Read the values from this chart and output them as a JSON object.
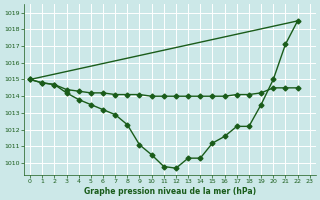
{
  "x_ticks": [
    0,
    1,
    2,
    3,
    4,
    5,
    6,
    7,
    8,
    9,
    10,
    11,
    12,
    13,
    14,
    15,
    16,
    17,
    18,
    19,
    20,
    21,
    22,
    23
  ],
  "line1": {
    "x": [
      0,
      1,
      2,
      3,
      4,
      5,
      6,
      7,
      8,
      9,
      10,
      11,
      12,
      13,
      14,
      15,
      16,
      17,
      18,
      19,
      20,
      21,
      22
    ],
    "y": [
      1015.0,
      1014.8,
      1014.7,
      1014.2,
      1013.8,
      1013.5,
      1013.2,
      1012.9,
      1012.3,
      1011.1,
      1010.5,
      1009.8,
      1009.7,
      1010.3,
      1010.3,
      1011.2,
      1011.6,
      1012.2,
      1012.2,
      1013.5,
      1015.0,
      1017.1,
      1018.5
    ]
  },
  "line2": {
    "x": [
      0,
      1,
      2,
      3,
      4,
      5,
      6,
      7,
      8,
      9,
      10,
      11,
      12,
      13,
      14,
      15,
      16,
      17,
      18,
      19,
      20,
      21,
      22
    ],
    "y": [
      1015.0,
      1014.8,
      1014.7,
      1014.4,
      1014.3,
      1014.2,
      1014.2,
      1014.1,
      1014.1,
      1014.1,
      1014.0,
      1014.0,
      1014.0,
      1014.0,
      1014.0,
      1014.0,
      1014.0,
      1014.1,
      1014.1,
      1014.2,
      1014.5,
      1014.5,
      1014.5
    ]
  },
  "line3": {
    "x": [
      0,
      22
    ],
    "y": [
      1015.0,
      1018.5
    ]
  },
  "ylim": [
    1009.3,
    1019.5
  ],
  "yticks": [
    1010,
    1011,
    1012,
    1013,
    1014,
    1015,
    1016,
    1017,
    1018,
    1019
  ],
  "xlim": [
    -0.5,
    23.5
  ],
  "bg_color": "#cce8e8",
  "grid_color": "#ffffff",
  "line_color": "#1a5c1a",
  "xlabel": "Graphe pression niveau de la mer (hPa)",
  "marker": "D",
  "marker_size": 2.5,
  "linewidth": 1.0
}
